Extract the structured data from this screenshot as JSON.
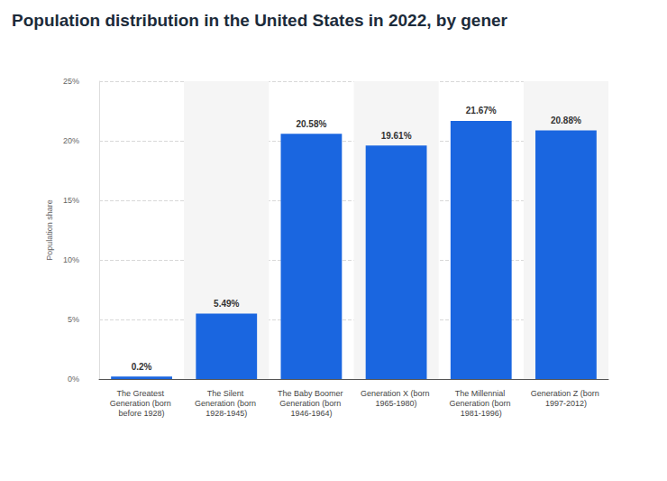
{
  "chart_data": {
    "type": "bar",
    "title": "Population distribution in the United States in 2022, by gener",
    "y_label": "Population share",
    "categories": [
      "The Greatest Generation (born before 1928)",
      "The Silent Generation (born 1928-1945)",
      "The Baby Boomer Generation (born 1946-1964)",
      "Generation X (born 1965-1980)",
      "The Millennial Generation (born 1981-1996)",
      "Generation Z (born 1997-2012)"
    ],
    "values": [
      0.2,
      5.49,
      20.58,
      19.61,
      21.67,
      20.88
    ],
    "value_labels": [
      "0.2%",
      "5.49%",
      "20.58%",
      "19.61%",
      "21.67%",
      "20.88%"
    ],
    "color": "#1a66e0",
    "ylim": [
      0,
      25
    ],
    "yticks": [
      {
        "value": 0,
        "label": "0%"
      },
      {
        "value": 5,
        "label": "5%"
      },
      {
        "value": 10,
        "label": "10%"
      },
      {
        "value": 15,
        "label": "15%"
      },
      {
        "value": 20,
        "label": "20%"
      },
      {
        "value": 25,
        "label": "25%"
      }
    ],
    "grid": true,
    "data_labels": true
  }
}
